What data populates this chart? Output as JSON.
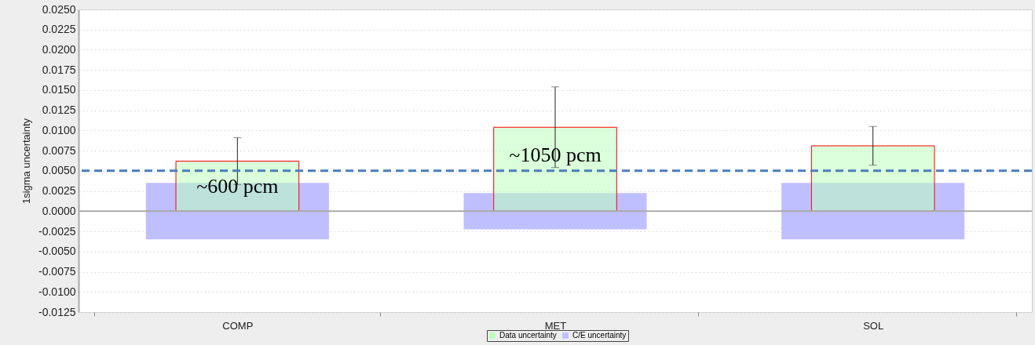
{
  "chart_data": {
    "type": "bar",
    "ylabel": "1sigma uncertainty",
    "categories": [
      "COMP",
      "MET",
      "SOL"
    ],
    "series": [
      {
        "name": "C/E uncertainty",
        "color": "#bfbfff",
        "base": [
          -0.0035,
          -0.00225,
          -0.0035
        ],
        "values": [
          0.007,
          0.0045,
          0.007
        ]
      },
      {
        "name": "Data uncertainty",
        "color": "#bbffbb",
        "values": [
          0.0062,
          0.0104,
          0.0081
        ],
        "errors": [
          [
            0.0033,
            0.0091
          ],
          [
            0.0054,
            0.0154
          ],
          [
            0.0057,
            0.0105
          ]
        ]
      }
    ],
    "ylim": [
      -0.0125,
      0.025
    ],
    "yticks": [
      -0.0125,
      {
        "value": -0.01,
        "label": "-0.0100"
      },
      -0.0075,
      {
        "value": -0.005,
        "label": "-0.0050"
      },
      -0.0025,
      {
        "value": 0,
        "label": "0.0000"
      },
      0.0025,
      {
        "value": 0.005,
        "label": "0.0050"
      },
      0.0075,
      {
        "value": 0.01,
        "label": "0.0100"
      },
      0.0125,
      {
        "value": 0.015,
        "label": "0.0150"
      },
      0.0175,
      {
        "value": 0.02,
        "label": "0.0200"
      },
      0.0225,
      {
        "value": 0.025,
        "label": "0.0250"
      }
    ],
    "grid": "y",
    "legend": "bottom",
    "ref_lines": [
      {
        "axis": "y",
        "value": 0,
        "color": "#aaaaaa",
        "line_style": "solid"
      },
      {
        "axis": "y",
        "value": 0.005,
        "color": "#4a7ebb",
        "line_style": "dashed"
      }
    ],
    "annotations": [
      {
        "text": "~600 pcm",
        "x": "COMP",
        "y": 0.003
      },
      {
        "text": "~1050 pcm",
        "x": "MET",
        "y": 0.0069
      }
    ]
  }
}
